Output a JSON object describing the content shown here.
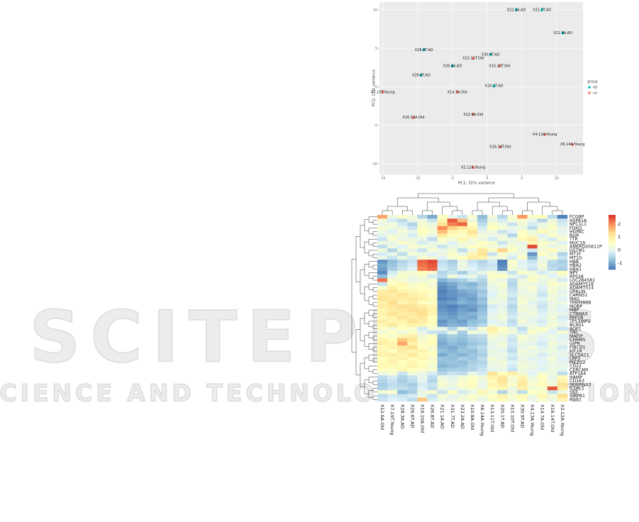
{
  "watermark": {
    "title": "SCITEPRESS",
    "subtitle": "SCIENCE AND TECHNOLOGY PUBLICATIONS"
  },
  "chart_data": [
    {
      "type": "scatter",
      "x_label": "PC1: 31% variance",
      "y_label": "PC2: 11% variance",
      "legend_title": "group",
      "legend": "right",
      "xlim": [
        -15.5,
        13.8
      ],
      "ylim": [
        -11.4,
        11
      ],
      "xticks": [
        -15,
        -10,
        -5,
        0,
        5,
        10
      ],
      "yticks": [
        -10,
        -5,
        0,
        5,
        10
      ],
      "grid": true,
      "series": [
        {
          "name": "AD",
          "color": "#00bfc4",
          "labels": [
            "X22.2A.AD",
            "X31.7T.AD",
            "X21.9A.AD",
            "X28.8T.AD",
            "X30.9T.AD",
            "X26.6A.AD",
            "X29.6T.AD",
            "X20.1T.AD"
          ],
          "x": [
            4.2,
            7.9,
            10.9,
            -9.1,
            0.5,
            -5.0,
            -9.5,
            1.0
          ],
          "values": [
            10,
            10,
            7.0,
            4.8,
            4.2,
            2.7,
            1.5,
            0.1
          ]
        },
        {
          "name": "nd",
          "color": "#f8766d",
          "labels": [
            "X13.11T.Old",
            "X15.10T.Old",
            "X7.19T.Young",
            "X14.7A.Old",
            "X16.10A.Old",
            "X12.6A.Old",
            "X4.13A.Young",
            "X6.14A.Young",
            "X16.14T.Old",
            "X2.12A.Young"
          ],
          "x": [
            -2.0,
            1.8,
            -15,
            -4.3,
            -10.6,
            -2.0,
            8.3,
            12.3,
            1.9,
            -2.0
          ],
          "values": [
            3.7,
            2.7,
            -0.7,
            -0.7,
            -4.0,
            -3.6,
            -6.2,
            -7.5,
            -7.8,
            -10.5
          ]
        }
      ]
    },
    {
      "type": "heatmap",
      "columns": [
        "X12.6A.Old",
        "X7.19T.Young",
        "X28.3A.AD",
        "X26.6T.AD",
        "X16.10A.Old",
        "X26.8T.AD",
        "X21.1A.AD",
        "X31.7T.AD",
        "X23.2A.AD",
        "X10.8A.Old",
        "X6.14A.Young",
        "X13.11T.Old",
        "X20.1T.AD",
        "X15.10T.Old",
        "X30.9T.AD",
        "X4.13A.Young",
        "X14.7A.Old",
        "X16.14T.Old",
        "X2.12A.Young"
      ],
      "rows": [
        "FCGBP",
        "HSPA1A",
        "NPC1L1",
        "FOXJ1",
        "HGFAC",
        "RGR",
        "TTR",
        "MUC19",
        "ANKRD20A11P",
        "GSTM1",
        "MT1F",
        "MT1G",
        "HBB",
        "HBA2",
        "HBA1",
        "NPY",
        "RPS28",
        "LOC284581",
        "ADAMTS18",
        "ADAMTS14",
        "OPALIN",
        "CARNS1",
        "MAG",
        "TMEM88B",
        "MOBP",
        "MBP",
        "CTNNA3",
        "PAP2B",
        "TP53INP2",
        "BCAS1",
        "AQP1",
        "TNC",
        "MAFIP",
        "CHRM5",
        "GIPR",
        "FIBCD1",
        "KIF19",
        "SLC5A11",
        "LRP2",
        "PIEZO2",
        "CD22",
        "CERCAM",
        "ATP1A4",
        "HAMP",
        "CD163",
        "SERPINA3",
        "IL1RL1",
        "SST",
        "SIRPB1",
        "RGS1"
      ],
      "values": [
        [
          1.8,
          0.2,
          0.5,
          0.3,
          -0.5,
          -1,
          0.6,
          0.1,
          -0.3,
          0.4,
          -0.8,
          0.3,
          -0.5,
          0.4,
          1.9,
          0.5,
          0.6,
          -0.4,
          -1.4
        ],
        [
          0.3,
          -0.2,
          -0.4,
          0.1,
          0.2,
          -0.3,
          0.8,
          2.4,
          1.6,
          0.2,
          -0.6,
          0.1,
          -0.2,
          0.3,
          0.4,
          0.1,
          -0.5,
          0.2,
          -0.3
        ],
        [
          0.1,
          0.3,
          -0.2,
          -0.5,
          0.4,
          0.2,
          1.2,
          2.1,
          2.3,
          0.6,
          -0.4,
          0.5,
          0.2,
          -0.3,
          0.3,
          -0.2,
          0.1,
          0.4,
          -0.2
        ],
        [
          0.4,
          0.2,
          0.1,
          -0.3,
          0.5,
          0.3,
          2.0,
          1.4,
          1.1,
          0.8,
          -0.2,
          0.6,
          0.4,
          0.1,
          0.2,
          -0.4,
          0.3,
          0.5,
          0.1
        ],
        [
          0.2,
          -0.1,
          0.3,
          0.1,
          0.6,
          0.4,
          1.6,
          0.9,
          0.7,
          1.2,
          0.1,
          0.3,
          -0.3,
          -0.1,
          0.5,
          0.2,
          0.7,
          0.3,
          0
        ],
        [
          0,
          0.3,
          0.2,
          -0.2,
          0.4,
          0.1,
          1.1,
          0.6,
          0.5,
          0.9,
          0.3,
          0.1,
          0.2,
          -0.5,
          0.6,
          0.4,
          -0.1,
          0.5,
          0.2
        ],
        [
          -0.3,
          0.4,
          0.1,
          0.2,
          0.1,
          -0.4,
          0.5,
          0.3,
          0.8,
          0.4,
          0.2,
          -0.2,
          0.3,
          0.1,
          0.7,
          1.0,
          0.2,
          -0.2,
          0.4
        ],
        [
          0.2,
          0.1,
          0.5,
          0.3,
          -0.2,
          0.1,
          0.3,
          -0.1,
          0.4,
          0.2,
          0.6,
          0.4,
          -0.3,
          0.2,
          0.1,
          0.8,
          0.5,
          0.3,
          -0.1
        ],
        [
          -0.4,
          0.2,
          -0.1,
          0.4,
          0.3,
          0.2,
          -0.3,
          0.1,
          0.2,
          0.6,
          0.5,
          0.3,
          0.1,
          0.4,
          0.2,
          2.5,
          0.4,
          0.1,
          0.3
        ],
        [
          0.3,
          -0.5,
          0.2,
          0.1,
          -0.3,
          0.4,
          0.1,
          0.3,
          -0.4,
          0.2,
          1.1,
          0.5,
          1.4,
          0.6,
          0.1,
          -0.2,
          0.3,
          0.7,
          0.2
        ],
        [
          -0.2,
          0.1,
          -0.4,
          0.3,
          0.2,
          -0.1,
          0.2,
          0.5,
          0.1,
          0.8,
          1.2,
          -0.3,
          0.4,
          0.1,
          0.3,
          -1.2,
          0.6,
          0.2,
          -0.5
        ],
        [
          0.1,
          -0.3,
          0.2,
          -0.2,
          0.4,
          0.3,
          -0.1,
          0.4,
          0.6,
          1.0,
          0.9,
          0.2,
          0.3,
          -0.2,
          0.5,
          -0.8,
          0.1,
          0.4,
          -0.3
        ],
        [
          -1.2,
          -0.8,
          -0.5,
          -0.3,
          2.3,
          2.5,
          -0.4,
          -0.6,
          0.1,
          -0.3,
          -0.5,
          -0.2,
          -1.4,
          0.5,
          -0.1,
          -0.3,
          0.2,
          -0.4,
          -0.6
        ],
        [
          -1.0,
          -0.7,
          -0.4,
          -0.2,
          2.2,
          2.4,
          -0.3,
          -0.5,
          0.2,
          -0.2,
          -0.4,
          -0.3,
          -1.3,
          0.4,
          0,
          -0.2,
          0.3,
          -0.5,
          -0.5
        ],
        [
          -1.1,
          -0.6,
          -0.3,
          -0.1,
          2.1,
          2.3,
          -0.2,
          -0.4,
          0.1,
          -0.1,
          -0.3,
          -0.2,
          -1.2,
          0.3,
          0.1,
          -0.3,
          0.2,
          -0.4,
          -0.6
        ],
        [
          -1.3,
          -0.2,
          0.3,
          0.4,
          0.6,
          0.3,
          -0.5,
          -0.3,
          -0.6,
          -0.2,
          0.1,
          0.4,
          0.2,
          -0.3,
          0.5,
          0.3,
          -0.2,
          0.1,
          0.6
        ],
        [
          -0.8,
          0.1,
          0.5,
          0.2,
          0.4,
          -0.2,
          -0.4,
          0.3,
          -0.1,
          0.2,
          -0.3,
          0.5,
          0.6,
          0.1,
          -0.2,
          0.4,
          0.3,
          -0.1,
          0.2
        ],
        [
          2.2,
          0.5,
          0.3,
          0.1,
          0.2,
          0.4,
          -0.9,
          -0.7,
          -0.6,
          -0.3,
          -0.5,
          0.3,
          0.1,
          -0.4,
          0.2,
          0.5,
          0.1,
          0.3,
          -0.2
        ],
        [
          -0.3,
          0.6,
          0.8,
          0.4,
          0.5,
          0.3,
          -1.2,
          -1.0,
          -0.8,
          -0.9,
          -0.6,
          0.2,
          0.4,
          -0.5,
          0.3,
          0.2,
          0.1,
          0.5,
          0.3
        ],
        [
          0.4,
          0.9,
          0.7,
          0.5,
          0.6,
          0.4,
          -1.3,
          -1.1,
          -0.7,
          -0.8,
          -0.5,
          0.1,
          0.3,
          -0.4,
          0.2,
          0.4,
          -0.1,
          0.3,
          0.2
        ],
        [
          1.0,
          1.2,
          0.9,
          0.8,
          0.7,
          0.6,
          -1.4,
          -1.2,
          -1.0,
          -0.9,
          -0.7,
          0,
          0.2,
          -0.3,
          0.1,
          0.3,
          -0.2,
          0.4,
          0
        ],
        [
          1.1,
          1.0,
          1.2,
          0.9,
          0.8,
          0.5,
          -1.3,
          -1.2,
          -1.1,
          -1.0,
          -0.6,
          -0.1,
          0.3,
          -0.2,
          0.2,
          0.1,
          -0.3,
          0.2,
          0.1
        ],
        [
          1.2,
          1.1,
          1.0,
          1.1,
          0.9,
          0.7,
          -1.4,
          -1.3,
          -1.0,
          -1.1,
          -0.8,
          0.1,
          0.2,
          -0.4,
          0.3,
          0.2,
          -0.1,
          0.3,
          -0.1
        ],
        [
          0.9,
          1.3,
          0.8,
          1.0,
          0.6,
          0.5,
          -1.2,
          -1.1,
          -0.9,
          -1.0,
          -0.7,
          0.2,
          0.1,
          -0.3,
          0.4,
          0,
          -0.2,
          0.1,
          0.2
        ],
        [
          1.0,
          1.1,
          1.3,
          1.2,
          1.0,
          0.8,
          -1.3,
          -1.4,
          -1.2,
          -1.1,
          -0.9,
          -0.2,
          0,
          -0.5,
          0.2,
          0.1,
          -0.3,
          0.2,
          0
        ],
        [
          0.8,
          1.0,
          1.1,
          1.3,
          1.2,
          0.9,
          -1.2,
          -1.3,
          -1.1,
          -1.2,
          -0.8,
          -0.1,
          0.1,
          -0.4,
          0.3,
          0.2,
          -0.2,
          0.1,
          -0.1
        ],
        [
          0.9,
          1.2,
          1.0,
          1.1,
          1.3,
          0.8,
          -1.1,
          -1.2,
          -1.0,
          -0.9,
          -0.7,
          0,
          0.2,
          -0.3,
          0.1,
          0.3,
          -0.1,
          0.2,
          0.1
        ],
        [
          0.7,
          0.9,
          1.2,
          1.0,
          1.1,
          0.6,
          -1.0,
          -1.1,
          -0.9,
          -1.0,
          -0.6,
          0.1,
          0.3,
          -0.2,
          0.2,
          0.1,
          0,
          0.3,
          -0.2
        ],
        [
          1.0,
          0.8,
          0.9,
          1.2,
          1.0,
          0.7,
          -1.2,
          -1.0,
          -1.1,
          -0.8,
          -0.7,
          -0.1,
          0.1,
          -0.4,
          0.3,
          0,
          -0.2,
          0.2,
          0
        ],
        [
          0.8,
          1.1,
          0.7,
          0.9,
          0.8,
          0.5,
          -1.1,
          -0.9,
          -1.0,
          -0.7,
          -0.5,
          0.2,
          0,
          -0.3,
          0.1,
          0.2,
          -0.1,
          0.4,
          0.1
        ],
        [
          0.5,
          0.3,
          0.6,
          0.4,
          -0.2,
          0.3,
          0.1,
          -0.5,
          0.2,
          -0.3,
          0.4,
          1.0,
          0.6,
          0.2,
          -0.4,
          0.3,
          0.5,
          0.1,
          -0.3
        ],
        [
          0.3,
          0.6,
          0.2,
          0.5,
          0.1,
          -0.3,
          -0.4,
          0.2,
          -0.6,
          0.3,
          0.1,
          0.8,
          0.4,
          0.3,
          -0.2,
          0.5,
          0.2,
          -0.1,
          0.4
        ],
        [
          0.6,
          0.4,
          0.8,
          1.0,
          0.3,
          0.5,
          -0.8,
          -0.6,
          -0.7,
          -0.5,
          -0.4,
          0.3,
          0.2,
          -0.2,
          0.4,
          0.1,
          0,
          0.2,
          -0.1
        ],
        [
          0.9,
          0.7,
          1.5,
          1.2,
          0.4,
          0.6,
          -0.9,
          -0.7,
          -0.8,
          -0.6,
          -0.5,
          0.2,
          0.1,
          -0.3,
          0.3,
          0.2,
          -0.1,
          0.1,
          0
        ],
        [
          1.0,
          0.8,
          1.8,
          0.9,
          0.5,
          0.7,
          -1.0,
          -0.8,
          -0.9,
          -0.7,
          -0.6,
          0.1,
          0.3,
          -0.2,
          0.2,
          0,
          -0.2,
          0.3,
          0.1
        ],
        [
          0.7,
          0.9,
          1.1,
          1.3,
          0.6,
          0.4,
          -0.9,
          -1.0,
          -0.8,
          -0.6,
          -0.4,
          0,
          0.2,
          -0.3,
          0.1,
          0.3,
          -0.1,
          0.2,
          -0.2
        ],
        [
          0.8,
          0.6,
          1.0,
          0.8,
          0.9,
          0.5,
          -0.8,
          -0.9,
          -0.7,
          -0.8,
          -0.5,
          0.2,
          0,
          -0.4,
          0.3,
          0.1,
          0.1,
          0.2,
          0
        ],
        [
          0.9,
          1.0,
          0.8,
          1.1,
          0.7,
          0.6,
          -1.0,
          -0.8,
          -0.9,
          -0.7,
          -0.6,
          0.1,
          0.2,
          -0.2,
          0.2,
          0.2,
          -0.2,
          0.1,
          0.1
        ],
        [
          0.6,
          0.8,
          0.9,
          0.7,
          0.8,
          0.4,
          -0.7,
          -0.8,
          -0.6,
          -0.7,
          -0.4,
          0.3,
          0.1,
          -0.3,
          0.1,
          0,
          0,
          0.3,
          -0.1
        ],
        [
          0.7,
          0.9,
          0.6,
          0.8,
          0.6,
          0.5,
          -0.8,
          -0.7,
          -0.8,
          -0.6,
          -0.5,
          0.2,
          0.3,
          -0.1,
          0.2,
          0.1,
          -0.1,
          0.2,
          0
        ],
        [
          0.8,
          0.7,
          0.7,
          0.9,
          0.7,
          0.3,
          -0.9,
          -0.8,
          -0.7,
          -0.5,
          -0.4,
          0.1,
          0.2,
          -0.2,
          0.3,
          0.2,
          0,
          0.1,
          0.1
        ],
        [
          0.6,
          0.5,
          0.8,
          0.6,
          0.5,
          0.4,
          -0.7,
          -0.6,
          -0.6,
          -0.5,
          -0.3,
          0,
          0.1,
          -0.3,
          0.2,
          0.1,
          -0.1,
          0.2,
          0
        ],
        [
          0.2,
          0.4,
          -0.3,
          0.3,
          0.1,
          -0.2,
          -0.5,
          -0.3,
          -0.4,
          0.1,
          -0.2,
          1.2,
          0.6,
          1.0,
          0.3,
          -0.1,
          0.4,
          0.2,
          -0.4
        ],
        [
          -0.4,
          -0.2,
          -0.5,
          -0.3,
          0.1,
          -0.4,
          0.2,
          0,
          0.3,
          0.5,
          0.3,
          0.9,
          1.1,
          0.4,
          0.8,
          0.2,
          0.6,
          0.1,
          0.7
        ],
        [
          -0.5,
          -0.3,
          -0.6,
          -0.4,
          0,
          -0.5,
          0.3,
          0.1,
          0.4,
          0.6,
          0.2,
          0.7,
          1.2,
          0.3,
          1.0,
          0.3,
          0.5,
          0.2,
          0.9
        ],
        [
          -0.6,
          -0.4,
          -0.5,
          -0.6,
          -0.2,
          -0.3,
          0.4,
          0.2,
          0.5,
          0.7,
          0.1,
          0.8,
          1.0,
          0.5,
          1.1,
          0.4,
          0.7,
          0.3,
          1.2
        ],
        [
          -0.5,
          -0.3,
          -0.4,
          -0.5,
          -0.1,
          -0.4,
          0.2,
          0,
          0.3,
          0.4,
          0.2,
          0.6,
          0.8,
          0.2,
          0.9,
          0.3,
          0.4,
          2.4,
          1.0
        ],
        [
          0.3,
          0.5,
          -0.8,
          -0.6,
          0.2,
          0.4,
          -0.3,
          0.6,
          -0.2,
          0.1,
          0.8,
          0.3,
          -0.5,
          0.2,
          -0.4,
          0.6,
          0.5,
          -0.3,
          0.2
        ],
        [
          -0.4,
          -0.2,
          -0.3,
          -0.2,
          0.1,
          -0.3,
          0.3,
          0.1,
          0.2,
          0.5,
          0.3,
          0.6,
          0.9,
          0.4,
          0.7,
          0.2,
          0.8,
          0.3,
          1.3
        ],
        [
          -0.3,
          -0.1,
          -0.2,
          -0.4,
          1.5,
          -0.2,
          0.2,
          0.1,
          0.3,
          0.4,
          0.1,
          0.5,
          0.7,
          0.3,
          0.6,
          0.1,
          0.5,
          0.2,
          0.9
        ]
      ],
      "colorbar": {
        "lim": [
          -1.5,
          2.7
        ],
        "ticks": [
          -1,
          0,
          1,
          2
        ],
        "colors": [
          "#4575b4",
          "#91bfdb",
          "#e0f3f8",
          "#ffffbf",
          "#fee090",
          "#fc8d59",
          "#d73027"
        ]
      }
    }
  ]
}
